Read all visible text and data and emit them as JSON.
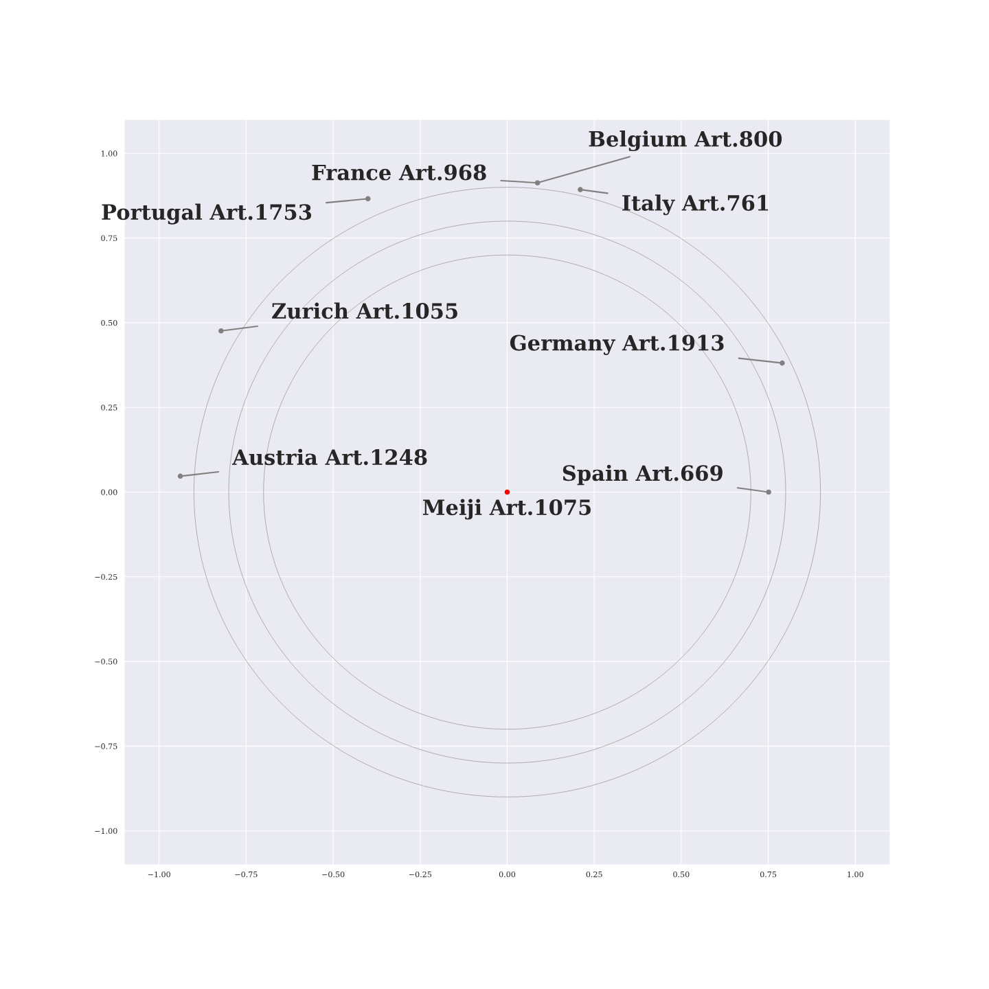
{
  "chart_data": {
    "type": "scatter",
    "xlim": [
      -1.1,
      1.1
    ],
    "ylim": [
      -1.1,
      1.1
    ],
    "xticks": [
      {
        "value": -1.0,
        "label": "−1.00"
      },
      {
        "value": -0.75,
        "label": "−0.75"
      },
      {
        "value": -0.5,
        "label": "−0.50"
      },
      {
        "value": -0.25,
        "label": "−0.25"
      },
      {
        "value": 0.0,
        "label": "0.00"
      },
      {
        "value": 0.25,
        "label": "0.25"
      },
      {
        "value": 0.5,
        "label": "0.50"
      },
      {
        "value": 0.75,
        "label": "0.75"
      },
      {
        "value": 1.0,
        "label": "1.00"
      }
    ],
    "yticks": [
      {
        "value": -1.0,
        "label": "−1.00"
      },
      {
        "value": -0.75,
        "label": "−0.75"
      },
      {
        "value": -0.5,
        "label": "−0.50"
      },
      {
        "value": -0.25,
        "label": "−0.25"
      },
      {
        "value": 0.0,
        "label": "0.00"
      },
      {
        "value": 0.25,
        "label": "0.25"
      },
      {
        "value": 0.5,
        "label": "0.50"
      },
      {
        "value": 0.75,
        "label": "0.75"
      },
      {
        "value": 1.0,
        "label": "1.00"
      }
    ],
    "grid": true,
    "legend": false,
    "series": [
      {
        "color": "#808080",
        "marker": "circle",
        "x": [
          0.087,
          0.21,
          -0.4,
          -0.822,
          0.79,
          -0.939,
          0.751
        ],
        "values": [
          0.913,
          0.893,
          0.866,
          0.476,
          0.381,
          0.047,
          0.0
        ]
      },
      {
        "color": "#ff0000",
        "marker": "circle",
        "x": [
          0.0
        ],
        "values": [
          0.0
        ]
      }
    ],
    "annotations": [
      {
        "text": "Belgium Art.800",
        "x": 0.087,
        "y": 0.913
      },
      {
        "text": "France Art.968",
        "x": 0.087,
        "y": 0.913
      },
      {
        "text": "Italy Art.761",
        "x": 0.21,
        "y": 0.893
      },
      {
        "text": "Portugal Art.1753",
        "x": -0.4,
        "y": 0.866
      },
      {
        "text": "Zurich Art.1055",
        "x": -0.822,
        "y": 0.476
      },
      {
        "text": "Germany Art.1913",
        "x": 0.79,
        "y": 0.381
      },
      {
        "text": "Austria Art.1248",
        "x": -0.939,
        "y": 0.047
      },
      {
        "text": "Spain Art.669",
        "x": 0.751,
        "y": 0.0
      },
      {
        "text": "Meiji Art.1075",
        "x": 0.0,
        "y": 0.0
      }
    ]
  }
}
